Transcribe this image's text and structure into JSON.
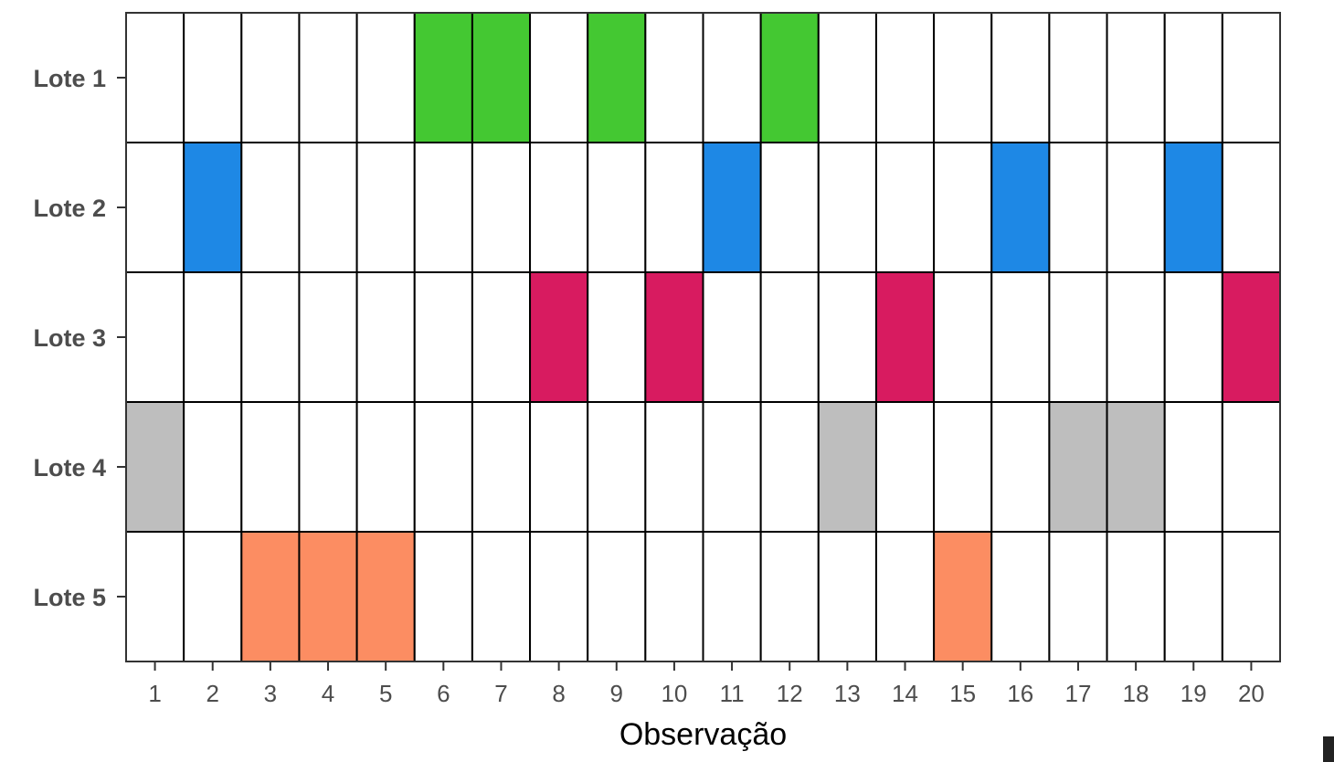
{
  "chart_data": {
    "type": "heatmap",
    "title": "",
    "xlabel": "Observação",
    "ylabel": "",
    "x": [
      1,
      2,
      3,
      4,
      5,
      6,
      7,
      8,
      9,
      10,
      11,
      12,
      13,
      14,
      15,
      16,
      17,
      18,
      19,
      20
    ],
    "x_tick_labels": [
      "1",
      "2",
      "3",
      "4",
      "5",
      "6",
      "7",
      "8",
      "9",
      "10",
      "11",
      "12",
      "13",
      "14",
      "15",
      "16",
      "17",
      "18",
      "19",
      "20"
    ],
    "rows": [
      {
        "label": "Lote 1",
        "color": "#44c832",
        "observations": [
          6,
          7,
          9,
          12
        ]
      },
      {
        "label": "Lote 2",
        "color": "#1e88e5",
        "observations": [
          2,
          11,
          16,
          19
        ]
      },
      {
        "label": "Lote 3",
        "color": "#d81b60",
        "observations": [
          8,
          10,
          14,
          20
        ]
      },
      {
        "label": "Lote 4",
        "color": "#bebebe",
        "observations": [
          1,
          13,
          17,
          18
        ]
      },
      {
        "label": "Lote 5",
        "color": "#fc8d62",
        "observations": [
          3,
          4,
          5,
          15
        ]
      }
    ],
    "empty_cell_color": "#ffffff",
    "cell_border_color": "#000000",
    "legend": "none",
    "grid": false
  }
}
